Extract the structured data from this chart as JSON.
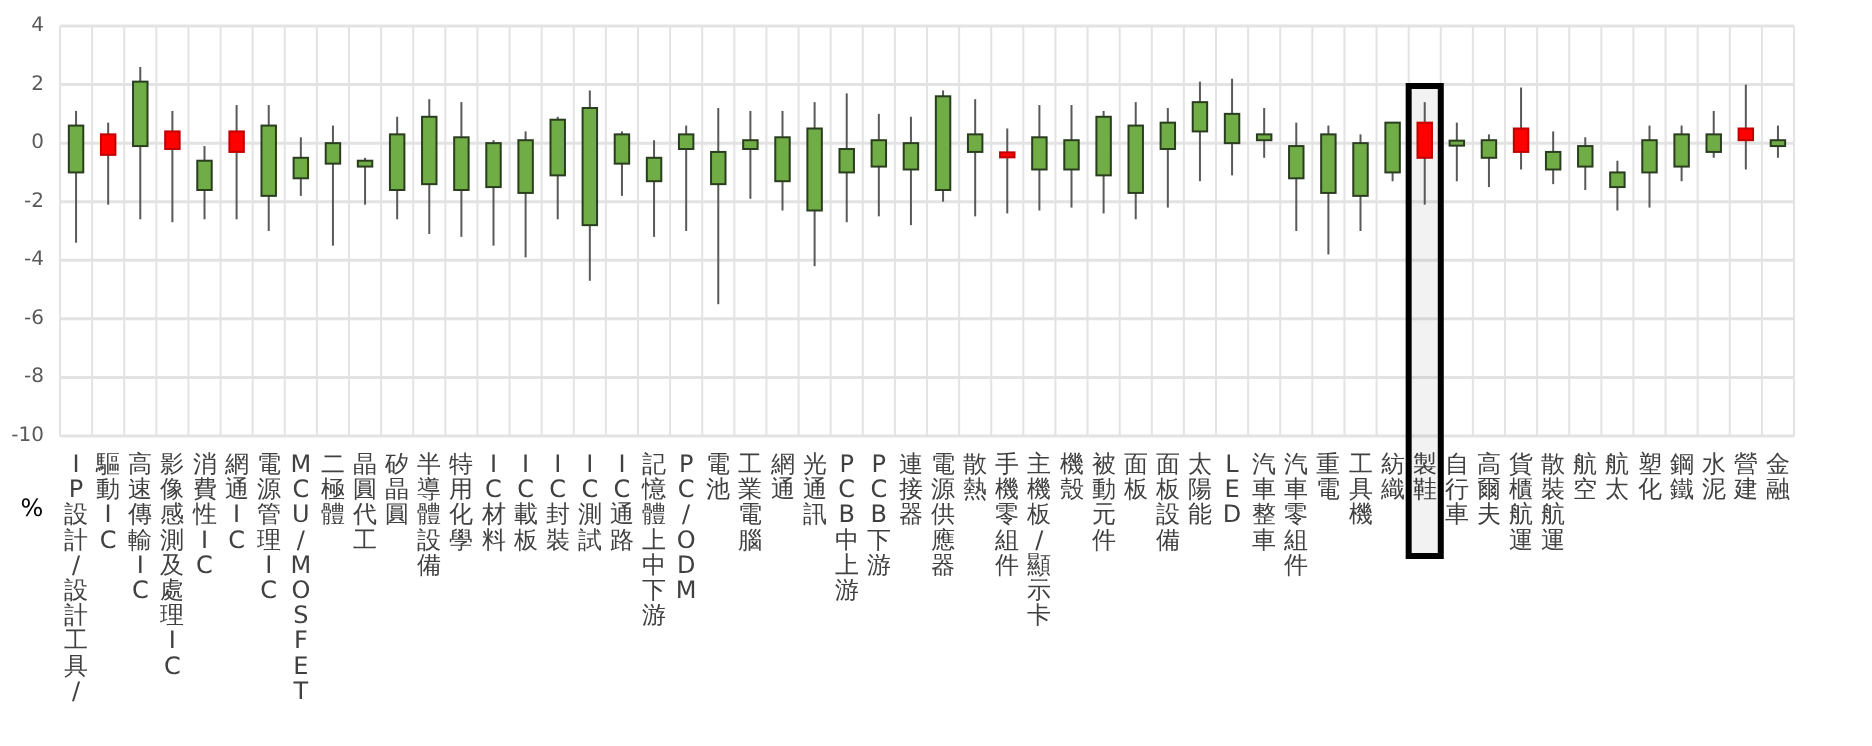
{
  "chart_data": {
    "type": "candlestick",
    "ylabel": "%",
    "categories": [
      "IP設計/設計工具/",
      "驅動IC",
      "高速傳輸IC",
      "影像感測及處理IC",
      "消費性IC",
      "網通IC",
      "電源管理IC",
      "MCU/MOSFET",
      "二極體",
      "晶圓代工",
      "矽晶圓",
      "半導體設備",
      "特用化學",
      "IC材料",
      "IC載板",
      "IC封裝",
      "IC測試",
      "IC通路",
      "記憶體上中下游",
      "PC/ODM",
      "電池",
      "工業電腦",
      "網通",
      "光通訊",
      "PCB中上游",
      "PCB下游",
      "連接器",
      "電源供應器",
      "散熱",
      "手機零組件",
      "主機板/顯示卡",
      "機殼",
      "被動元件",
      "面板",
      "面板設備",
      "太陽能",
      "LED",
      "汽車整車",
      "汽車零組件",
      "重電",
      "工具機",
      "紡織",
      "製鞋",
      "自行車",
      "高爾夫",
      "貨櫃航運",
      "散裝航運",
      "航空",
      "航太",
      "塑化",
      "鋼鐵",
      "水泥",
      "營建",
      "金融"
    ],
    "ohlc": [
      [
        0.6,
        1.1,
        -3.4,
        -1.0
      ],
      [
        -0.4,
        0.7,
        -2.1,
        0.3
      ],
      [
        2.1,
        2.6,
        -2.6,
        -0.1
      ],
      [
        -0.2,
        1.1,
        -2.7,
        0.4
      ],
      [
        -0.6,
        -0.1,
        -2.6,
        -1.6
      ],
      [
        -0.3,
        1.3,
        -2.6,
        0.4
      ],
      [
        0.6,
        1.3,
        -3.0,
        -1.8
      ],
      [
        -0.5,
        0.2,
        -1.8,
        -1.2
      ],
      [
        0,
        0.6,
        -3.5,
        -0.7
      ],
      [
        -0.6,
        -0.5,
        -2.1,
        -0.8
      ],
      [
        0.3,
        0.9,
        -2.6,
        -1.6
      ],
      [
        0.9,
        1.5,
        -3.1,
        -1.4
      ],
      [
        0.2,
        1.4,
        -3.2,
        -1.6
      ],
      [
        0,
        0.1,
        -3.5,
        -1.5
      ],
      [
        0.1,
        0.4,
        -3.9,
        -1.7
      ],
      [
        0.8,
        0.9,
        -2.6,
        -1.1
      ],
      [
        1.2,
        1.8,
        -4.7,
        -2.8
      ],
      [
        0.3,
        0.4,
        -1.8,
        -0.7
      ],
      [
        -0.5,
        0.1,
        -3.2,
        -1.3
      ],
      [
        0.3,
        0.6,
        -3.0,
        -0.2
      ],
      [
        -0.3,
        1.2,
        -5.5,
        -1.4
      ],
      [
        0.1,
        1.1,
        -1.9,
        -0.2
      ],
      [
        0.2,
        1.1,
        -2.3,
        -1.3
      ],
      [
        0.5,
        1.4,
        -4.2,
        -2.3
      ],
      [
        -0.2,
        1.7,
        -2.7,
        -1.0
      ],
      [
        0.1,
        1.0,
        -2.5,
        -0.8
      ],
      [
        0,
        0.9,
        -2.8,
        -0.9
      ],
      [
        1.6,
        1.8,
        -2.0,
        -1.6
      ],
      [
        0.3,
        1.5,
        -2.5,
        -0.3
      ],
      [
        -0.4,
        0.5,
        -2.4,
        -0.4
      ],
      [
        0.2,
        1.3,
        -2.3,
        -0.9
      ],
      [
        0.1,
        1.3,
        -2.2,
        -0.9
      ],
      [
        0.9,
        1.1,
        -2.4,
        -1.1
      ],
      [
        0.6,
        1.4,
        -2.6,
        -1.7
      ],
      [
        0.7,
        1.2,
        -2.2,
        -0.2
      ],
      [
        1.4,
        2.1,
        -1.3,
        0.4
      ],
      [
        1.0,
        2.2,
        -1.1,
        0
      ],
      [
        0.3,
        1.2,
        -0.5,
        0.1
      ],
      [
        -0.1,
        0.7,
        -3.0,
        -1.2
      ],
      [
        0.3,
        0.6,
        -3.8,
        -1.7
      ],
      [
        0,
        0.3,
        -3.0,
        -1.8
      ],
      [
        0.7,
        0.7,
        -1.3,
        -1.0
      ],
      [
        -0.5,
        1.4,
        -2.1,
        0.7
      ],
      [
        0,
        0.7,
        -1.3,
        0
      ],
      [
        0.1,
        0.3,
        -1.5,
        -0.5
      ],
      [
        -0.3,
        1.9,
        -0.9,
        0.5
      ],
      [
        -0.3,
        0.4,
        -1.4,
        -0.9
      ],
      [
        -0.1,
        0.2,
        -1.6,
        -0.8
      ],
      [
        -1.0,
        -0.6,
        -2.3,
        -1.5
      ],
      [
        0.1,
        0.6,
        -2.2,
        -1.0
      ],
      [
        0.3,
        0.6,
        -1.3,
        -0.8
      ],
      [
        0.3,
        1.1,
        -0.5,
        -0.3
      ],
      [
        0.1,
        2.0,
        -0.9,
        0.5
      ],
      [
        0.1,
        0.6,
        -0.5,
        -0.1
      ]
    ],
    "colors": [
      "#70ad47",
      "#ff0000",
      "#70ad47",
      "#ff0000",
      "#70ad47",
      "#ff0000",
      "#70ad47",
      "#70ad47",
      "#70ad47",
      "#70ad47",
      "#70ad47",
      "#70ad47",
      "#70ad47",
      "#70ad47",
      "#70ad47",
      "#70ad47",
      "#70ad47",
      "#70ad47",
      "#70ad47",
      "#70ad47",
      "#70ad47",
      "#70ad47",
      "#70ad47",
      "#70ad47",
      "#70ad47",
      "#70ad47",
      "#70ad47",
      "#70ad47",
      "#70ad47",
      "#ff0000",
      "#70ad47",
      "#70ad47",
      "#70ad47",
      "#70ad47",
      "#70ad47",
      "#70ad47",
      "#70ad47",
      "#70ad47",
      "#70ad47",
      "#70ad47",
      "#70ad47",
      "#70ad47",
      "#ff0000",
      "#70ad47",
      "#70ad47",
      "#ff0000",
      "#70ad47",
      "#70ad47",
      "#70ad47",
      "#70ad47",
      "#70ad47",
      "#70ad47",
      "#ff0000",
      "#70ad47"
    ],
    "ylim": [
      -10,
      4
    ],
    "yticks": [
      -10,
      -8,
      -6,
      -4,
      -2,
      0,
      2,
      4
    ],
    "grid": true,
    "bands": [
      {
        "axis": "x",
        "from": "製鞋",
        "to": "製鞋",
        "color": "#000000"
      }
    ]
  }
}
